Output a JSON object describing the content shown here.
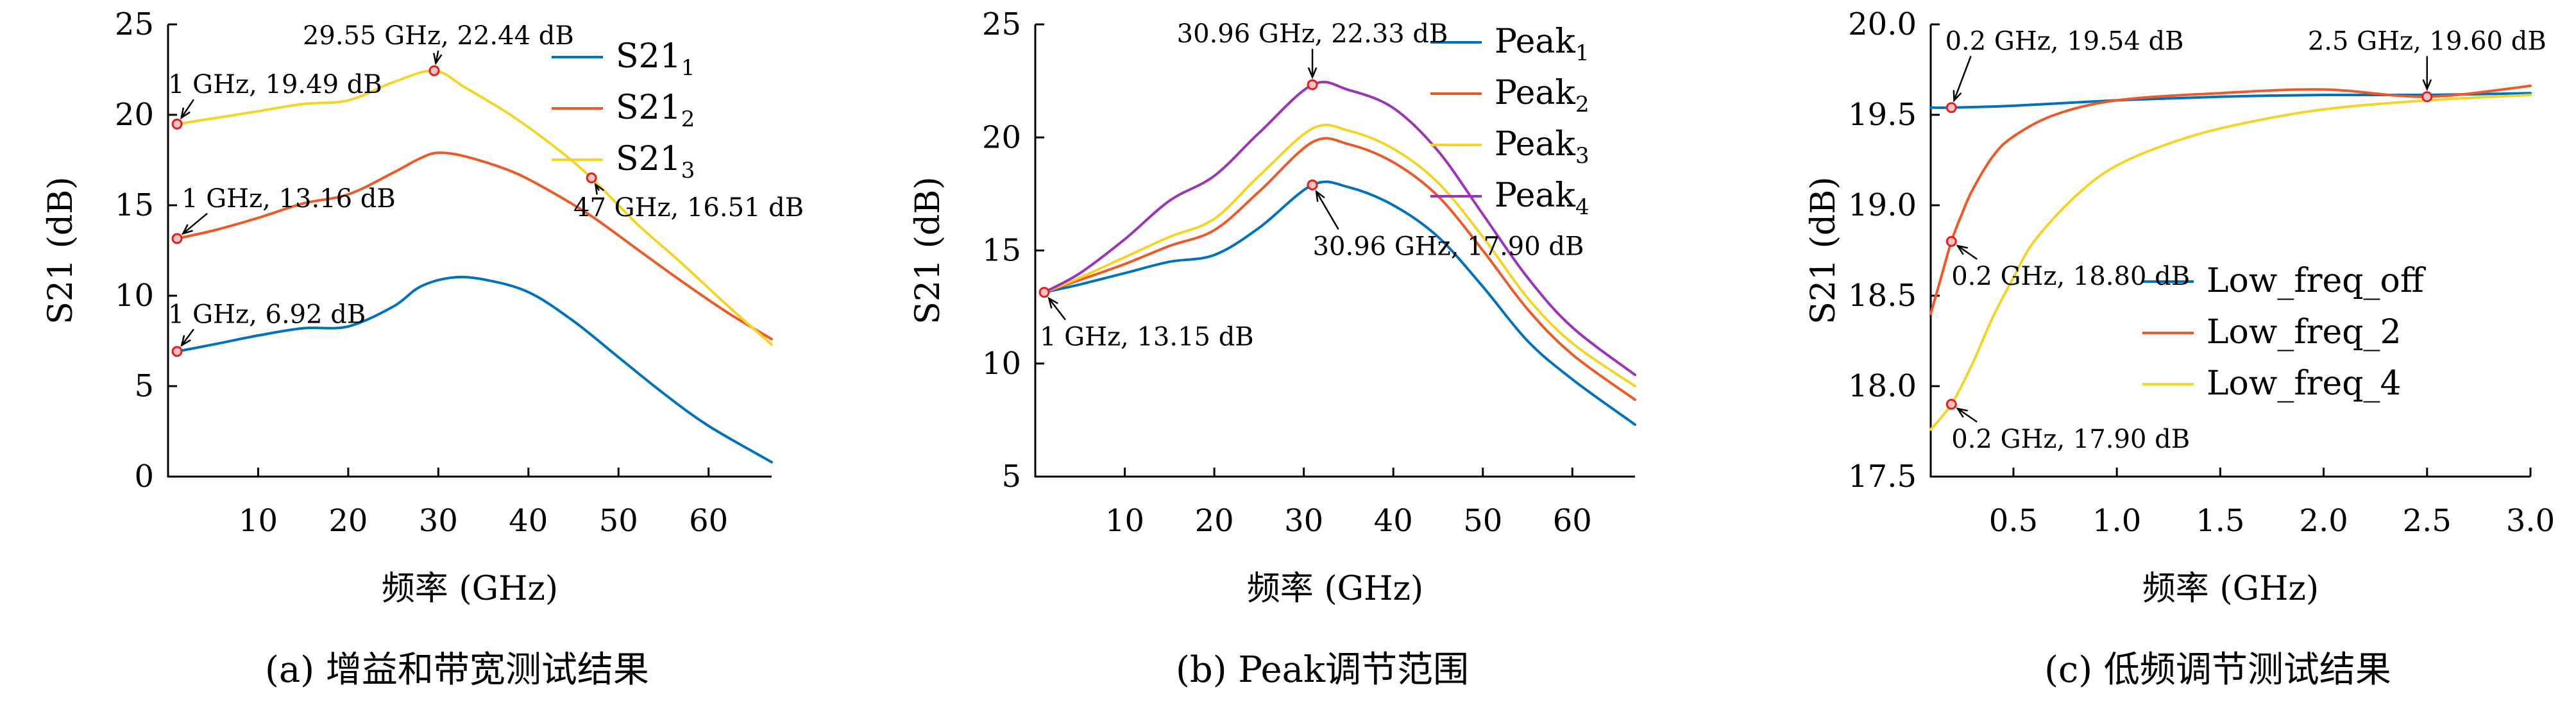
{
  "colors": {
    "blue": "#0072bd",
    "orange": "#ec5a2a",
    "yellow": "#f5d42a",
    "purple": "#9b35b8",
    "marker_edge": "#e0201b"
  },
  "chart_data": [
    {
      "id": "a",
      "type": "line",
      "caption": "(a) 增益和带宽测试结果",
      "xlabel": "频率 (GHz)",
      "ylabel": "S21 (dB)",
      "xlim": [
        0,
        67
      ],
      "ylim": [
        0,
        25
      ],
      "xticks": [
        10,
        20,
        30,
        40,
        50,
        60
      ],
      "yticks": [
        0,
        5,
        10,
        15,
        20,
        25
      ],
      "legend_position": "top-right",
      "series": [
        {
          "name": "S21",
          "sub": "1",
          "color": "blue",
          "x": [
            1,
            5,
            10,
            15,
            20,
            25,
            28,
            31.5,
            35,
            40,
            45,
            50,
            55,
            60,
            67
          ],
          "y": [
            6.92,
            7.3,
            7.8,
            8.2,
            8.3,
            9.4,
            10.5,
            11.0,
            10.9,
            10.2,
            8.6,
            6.6,
            4.6,
            2.8,
            0.8
          ]
        },
        {
          "name": "S21",
          "sub": "2",
          "color": "orange",
          "x": [
            1,
            5,
            10,
            15,
            20,
            25,
            28,
            30,
            33,
            38,
            42,
            47,
            52,
            57,
            62,
            67
          ],
          "y": [
            13.16,
            13.6,
            14.3,
            15.1,
            15.6,
            16.8,
            17.6,
            17.9,
            17.7,
            16.9,
            15.9,
            14.4,
            12.6,
            10.8,
            9.1,
            7.6
          ]
        },
        {
          "name": "S21",
          "sub": "3",
          "color": "yellow",
          "x": [
            1,
            5,
            10,
            15,
            20,
            25,
            29.55,
            33,
            38,
            43,
            47,
            52,
            57,
            62,
            67
          ],
          "y": [
            19.49,
            19.8,
            20.2,
            20.6,
            20.8,
            21.8,
            22.44,
            21.5,
            20.0,
            18.2,
            16.51,
            14.0,
            11.8,
            9.5,
            7.3
          ]
        }
      ],
      "annotations": [
        {
          "text": "29.55 GHz, 22.44 dB",
          "x": 29.55,
          "y": 22.44,
          "tx": 30,
          "ty": 23.9,
          "anchor": "middle"
        },
        {
          "text": "1 GHz, 19.49 dB",
          "x": 1,
          "y": 19.49,
          "tx": 0,
          "ty": 21.2,
          "anchor": "start"
        },
        {
          "text": "1 GHz, 13.16 dB",
          "x": 1,
          "y": 13.16,
          "tx": 1.5,
          "ty": 14.9,
          "anchor": "start"
        },
        {
          "text": "47 GHz, 16.51 dB",
          "x": 47,
          "y": 16.51,
          "tx": 45,
          "ty": 14.4,
          "anchor": "start"
        },
        {
          "text": "1 GHz, 6.92 dB",
          "x": 1,
          "y": 6.92,
          "tx": 0,
          "ty": 8.5,
          "anchor": "start"
        }
      ]
    },
    {
      "id": "b",
      "type": "line",
      "caption": "(b) Peak调节范围",
      "xlabel": "频率 (GHz)",
      "ylabel": "S21 (dB)",
      "xlim": [
        0,
        67
      ],
      "ylim": [
        5,
        25
      ],
      "xticks": [
        10,
        20,
        30,
        40,
        50,
        60
      ],
      "yticks": [
        5,
        10,
        15,
        20,
        25
      ],
      "legend_position": "top-right",
      "series": [
        {
          "name": "Peak",
          "sub": "1",
          "color": "blue",
          "x": [
            1,
            5,
            10,
            15,
            20,
            25,
            30.96,
            35,
            40,
            45,
            50,
            55,
            60,
            67
          ],
          "y": [
            13.15,
            13.5,
            14.0,
            14.5,
            14.8,
            16.0,
            17.9,
            17.8,
            17.0,
            15.6,
            13.4,
            11.0,
            9.3,
            7.3
          ]
        },
        {
          "name": "Peak",
          "sub": "2",
          "color": "orange",
          "x": [
            1,
            5,
            10,
            15,
            20,
            25,
            31,
            35,
            40,
            45,
            50,
            55,
            60,
            67
          ],
          "y": [
            13.15,
            13.7,
            14.4,
            15.2,
            15.9,
            17.6,
            19.8,
            19.7,
            18.9,
            17.4,
            15.0,
            12.4,
            10.4,
            8.4
          ]
        },
        {
          "name": "Peak",
          "sub": "3",
          "color": "yellow",
          "x": [
            1,
            5,
            10,
            15,
            20,
            25,
            31,
            35,
            40,
            45,
            50,
            55,
            60,
            67
          ],
          "y": [
            13.15,
            13.8,
            14.7,
            15.6,
            16.4,
            18.3,
            20.4,
            20.3,
            19.5,
            18.0,
            15.6,
            12.9,
            10.9,
            9.0
          ]
        },
        {
          "name": "Peak",
          "sub": "4",
          "color": "purple",
          "x": [
            1,
            5,
            10,
            15,
            20,
            25,
            30.96,
            35,
            40,
            45,
            50,
            55,
            60,
            67
          ],
          "y": [
            13.15,
            14.0,
            15.5,
            17.2,
            18.3,
            20.2,
            22.33,
            22.1,
            21.3,
            19.4,
            16.6,
            13.8,
            11.6,
            9.5
          ]
        }
      ],
      "annotations": [
        {
          "text": "30.96 GHz, 22.33 dB",
          "x": 30.96,
          "y": 22.33,
          "tx": 30.96,
          "ty": 24.2,
          "anchor": "middle"
        },
        {
          "text": "30.96 GHz, 17.90 dB",
          "x": 30.96,
          "y": 17.9,
          "tx": 31,
          "ty": 14.8,
          "anchor": "start"
        },
        {
          "text": "1 GHz, 13.15 dB",
          "x": 1,
          "y": 13.15,
          "tx": 0.5,
          "ty": 10.8,
          "anchor": "start"
        }
      ]
    },
    {
      "id": "c",
      "type": "line",
      "caption": "(c) 低频调节测试结果",
      "xlabel": "频率 (GHz)",
      "ylabel": "S21 (dB)",
      "xlim": [
        0.1,
        3.0
      ],
      "ylim": [
        17.5,
        20.0
      ],
      "xticks": [
        0.5,
        1.0,
        1.5,
        2.0,
        2.5,
        3.0
      ],
      "xtick_labels": [
        "0.5",
        "1.0",
        "1.5",
        "2.0",
        "2.5",
        "3.0"
      ],
      "yticks": [
        17.5,
        18.0,
        18.5,
        19.0,
        19.5,
        20.0
      ],
      "ytick_labels": [
        "17.5",
        "18.0",
        "18.5",
        "19.0",
        "19.5",
        "20.0"
      ],
      "legend_position": "center-right",
      "series": [
        {
          "name": "Low_freq_off",
          "color": "blue",
          "x": [
            0.1,
            0.2,
            0.5,
            1.0,
            1.5,
            2.0,
            2.5,
            3.0
          ],
          "y": [
            19.54,
            19.54,
            19.55,
            19.58,
            19.6,
            19.61,
            19.61,
            19.62
          ]
        },
        {
          "name": "Low_freq_2",
          "color": "orange",
          "x": [
            0.1,
            0.15,
            0.2,
            0.25,
            0.3,
            0.4,
            0.5,
            0.7,
            1.0,
            1.5,
            2.0,
            2.5,
            3.0
          ],
          "y": [
            18.4,
            18.6,
            18.8,
            18.95,
            19.08,
            19.27,
            19.38,
            19.5,
            19.58,
            19.62,
            19.64,
            19.6,
            19.66
          ]
        },
        {
          "name": "Low_freq_4",
          "color": "yellow",
          "x": [
            0.1,
            0.2,
            0.3,
            0.4,
            0.5,
            0.6,
            0.8,
            1.0,
            1.3,
            1.6,
            2.0,
            2.5,
            3.0
          ],
          "y": [
            17.76,
            17.9,
            18.12,
            18.38,
            18.6,
            18.8,
            19.05,
            19.22,
            19.36,
            19.45,
            19.53,
            19.58,
            19.61
          ]
        }
      ],
      "annotations": [
        {
          "text": "0.2 GHz, 19.54 dB",
          "x": 0.2,
          "y": 19.54,
          "tx": 0.17,
          "ty": 19.86,
          "anchor": "start"
        },
        {
          "text": "2.5 GHz, 19.60 dB",
          "x": 2.5,
          "y": 19.6,
          "tx": 2.5,
          "ty": 19.86,
          "anchor": "middle"
        },
        {
          "text": "0.2 GHz, 18.80 dB",
          "x": 0.2,
          "y": 18.8,
          "tx": 0.2,
          "ty": 18.56,
          "anchor": "start"
        },
        {
          "text": "0.2 GHz, 17.90 dB",
          "x": 0.2,
          "y": 17.9,
          "tx": 0.2,
          "ty": 17.66,
          "anchor": "start"
        }
      ]
    }
  ]
}
